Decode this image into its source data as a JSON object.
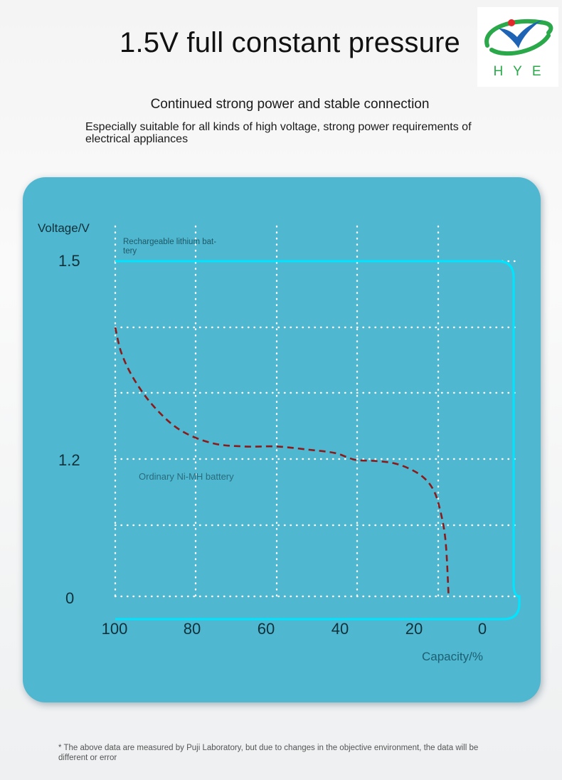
{
  "title": "1.5V full constant pressure",
  "logo": {
    "text": "HYE",
    "colors": {
      "green": "#2aa84a",
      "blue": "#1f63b5",
      "red": "#e3282b"
    }
  },
  "subtitle": "Continued strong power and stable connection",
  "description": "Especially suitable for all kinds of high voltage, strong power requirements of electrical appliances",
  "footnote": "* The above data are measured by Puji Laboratory, but due to changes in the objective environment, the data will be different or error",
  "chart_data": {
    "type": "line",
    "ylabel": "Voltage/V",
    "xlabel": "Capacity/%",
    "x_ticks": [
      "100",
      "80",
      "60",
      "40",
      "20",
      "0"
    ],
    "y_ticks": [
      "1.5",
      "1.2",
      "0"
    ],
    "grid": true,
    "background": "#4fb8d0",
    "series": [
      {
        "name": "Rechargeable lithium battery",
        "color": "#00e5ff",
        "style": "solid",
        "x": [
          100,
          80,
          60,
          40,
          20,
          5,
          0,
          -2,
          -3,
          -3,
          0
        ],
        "y": [
          1.5,
          1.5,
          1.5,
          1.5,
          1.5,
          1.5,
          1.49,
          1.45,
          1.3,
          0.05,
          -0.03
        ]
      },
      {
        "name": "Ordinary Ni-MH battery",
        "color": "#8b1a1a",
        "style": "dashed",
        "x": [
          100,
          98,
          94,
          88,
          80,
          70,
          60,
          50,
          40,
          32,
          26,
          20,
          14,
          9,
          5,
          2,
          0,
          -2,
          -3
        ],
        "y": [
          1.4,
          1.36,
          1.32,
          1.28,
          1.245,
          1.225,
          1.22,
          1.22,
          1.215,
          1.21,
          1.2,
          1.19,
          1.17,
          1.12,
          1.05,
          0.95,
          0.8,
          0.5,
          0.0
        ]
      }
    ]
  }
}
